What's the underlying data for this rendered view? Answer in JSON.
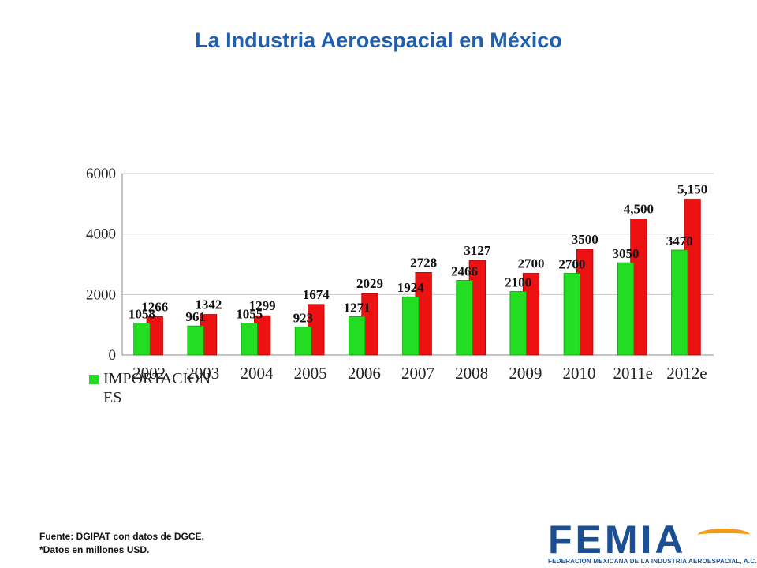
{
  "title": "La Industria Aeroespacial en México",
  "chart_data": {
    "type": "bar",
    "categories": [
      "2002",
      "2003",
      "2004",
      "2005",
      "2006",
      "2007",
      "2008",
      "2009",
      "2010",
      "2011e",
      "2012e"
    ],
    "series": [
      {
        "name": "IMPORTACION ES",
        "color": "#22dd22",
        "values": [
          1058,
          961,
          1055,
          923,
          1271,
          1924,
          2466,
          2100,
          2700,
          3050,
          3470
        ],
        "labels": [
          "1058",
          "961",
          "1055",
          "923",
          "1271",
          "1924",
          "2466",
          "2100",
          "2700",
          "3050",
          "3470"
        ]
      },
      {
        "color": "#ee1111",
        "values": [
          1266,
          1342,
          1299,
          1674,
          2029,
          2728,
          3127,
          2700,
          3500,
          4500,
          5150
        ],
        "labels": [
          "1266",
          "1342",
          "1299",
          "1674",
          "2029",
          "2728",
          "3127",
          "2700",
          "3500",
          "4,500",
          "5,150"
        ]
      }
    ],
    "yticks": [
      0,
      2000,
      4000,
      6000
    ],
    "ylim": [
      0,
      6000
    ],
    "grid": true,
    "legend_position": "bottom-left"
  },
  "legend": {
    "label": "IMPORTACION ES"
  },
  "footer": {
    "source_line1": "Fuente: DGIPAT con datos de DGCE,",
    "source_line2": "*Datos en millones  USD."
  },
  "logo": {
    "word": "FEMIA",
    "subtitle": "FEDERACION MEXICANA DE LA INDUSTRIA AEROESPACIAL, A.C."
  }
}
